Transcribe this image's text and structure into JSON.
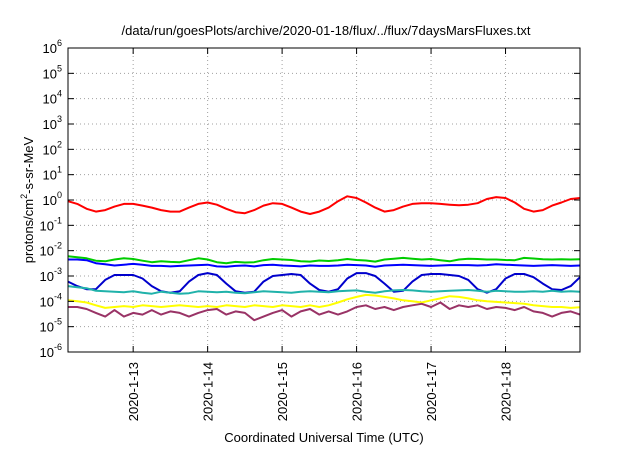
{
  "chart_data": {
    "type": "line",
    "title": "/data/run/goesPlots/archive/2020-01-18/flux/../flux/7daysMarsFluxes.txt",
    "xlabel": "Coordinated Universal Time (UTC)",
    "ylabel_parts": [
      "protons/cm",
      "2",
      "-s-sr-MeV"
    ],
    "y_scale": "log",
    "ylim": [
      1e-06,
      1000000.0
    ],
    "y_ticks": [
      {
        "base": "10",
        "exp": "-6",
        "value": 1e-06
      },
      {
        "base": "10",
        "exp": "-5",
        "value": 1e-05
      },
      {
        "base": "10",
        "exp": "-4",
        "value": 0.0001
      },
      {
        "base": "10",
        "exp": "-3",
        "value": 0.001
      },
      {
        "base": "10",
        "exp": "-2",
        "value": 0.01
      },
      {
        "base": "10",
        "exp": "-1",
        "value": 0.1
      },
      {
        "base": "10",
        "exp": "0",
        "value": 1
      },
      {
        "base": "10",
        "exp": "1",
        "value": 10
      },
      {
        "base": "10",
        "exp": "2",
        "value": 100
      },
      {
        "base": "10",
        "exp": "3",
        "value": 1000
      },
      {
        "base": "10",
        "exp": "4",
        "value": 10000
      },
      {
        "base": "10",
        "exp": "5",
        "value": 100000
      },
      {
        "base": "10",
        "exp": "6",
        "value": 1000000
      }
    ],
    "xlim": [
      "2020-01-12T03:00",
      "2020-01-19T00:00"
    ],
    "x_ticks": [
      {
        "label": "2020-1-13",
        "value": "2020-01-13T00:00"
      },
      {
        "label": "2020-1-14",
        "value": "2020-01-14T00:00"
      },
      {
        "label": "2020-1-15",
        "value": "2020-01-15T00:00"
      },
      {
        "label": "2020-1-16",
        "value": "2020-01-16T00:00"
      },
      {
        "label": "2020-1-17",
        "value": "2020-01-17T00:00"
      },
      {
        "label": "2020-1-18",
        "value": "2020-01-18T00:00"
      }
    ],
    "grid": true,
    "x": [
      "2020-01-12T03:00",
      "2020-01-12T06:00",
      "2020-01-12T09:00",
      "2020-01-12T12:00",
      "2020-01-12T15:00",
      "2020-01-12T18:00",
      "2020-01-12T21:00",
      "2020-01-13T00:00",
      "2020-01-13T03:00",
      "2020-01-13T06:00",
      "2020-01-13T09:00",
      "2020-01-13T12:00",
      "2020-01-13T15:00",
      "2020-01-13T18:00",
      "2020-01-13T21:00",
      "2020-01-14T00:00",
      "2020-01-14T03:00",
      "2020-01-14T06:00",
      "2020-01-14T09:00",
      "2020-01-14T12:00",
      "2020-01-14T15:00",
      "2020-01-14T18:00",
      "2020-01-14T21:00",
      "2020-01-15T00:00",
      "2020-01-15T03:00",
      "2020-01-15T06:00",
      "2020-01-15T09:00",
      "2020-01-15T12:00",
      "2020-01-15T15:00",
      "2020-01-15T18:00",
      "2020-01-15T21:00",
      "2020-01-16T00:00",
      "2020-01-16T03:00",
      "2020-01-16T06:00",
      "2020-01-16T09:00",
      "2020-01-16T12:00",
      "2020-01-16T15:00",
      "2020-01-16T18:00",
      "2020-01-16T21:00",
      "2020-01-17T00:00",
      "2020-01-17T03:00",
      "2020-01-17T06:00",
      "2020-01-17T09:00",
      "2020-01-17T12:00",
      "2020-01-17T15:00",
      "2020-01-17T18:00",
      "2020-01-17T21:00",
      "2020-01-18T00:00",
      "2020-01-18T03:00",
      "2020-01-18T06:00",
      "2020-01-18T09:00",
      "2020-01-18T12:00",
      "2020-01-18T15:00",
      "2020-01-18T18:00",
      "2020-01-18T21:00",
      "2020-01-19T00:00"
    ],
    "series": [
      {
        "color": "#ff0000",
        "values": [
          0.9,
          0.7,
          0.45,
          0.35,
          0.4,
          0.55,
          0.7,
          0.7,
          0.6,
          0.5,
          0.4,
          0.35,
          0.35,
          0.5,
          0.7,
          0.8,
          0.65,
          0.45,
          0.33,
          0.3,
          0.4,
          0.6,
          0.75,
          0.7,
          0.5,
          0.35,
          0.28,
          0.35,
          0.5,
          0.9,
          1.4,
          1.2,
          0.8,
          0.5,
          0.35,
          0.4,
          0.55,
          0.7,
          0.75,
          0.75,
          0.7,
          0.65,
          0.62,
          0.65,
          0.75,
          1.1,
          1.3,
          1.2,
          0.8,
          0.45,
          0.35,
          0.4,
          0.6,
          0.8,
          1.1,
          1.2
        ]
      },
      {
        "color": "#00cc00",
        "values": [
          0.006,
          0.0055,
          0.005,
          0.004,
          0.0038,
          0.0045,
          0.005,
          0.0047,
          0.004,
          0.0035,
          0.0038,
          0.0036,
          0.0035,
          0.0042,
          0.005,
          0.0045,
          0.0035,
          0.0032,
          0.0036,
          0.0034,
          0.0035,
          0.0042,
          0.0047,
          0.0045,
          0.0043,
          0.0038,
          0.0037,
          0.0041,
          0.0039,
          0.0042,
          0.0047,
          0.0043,
          0.0041,
          0.0037,
          0.0045,
          0.0048,
          0.0052,
          0.0048,
          0.0045,
          0.0047,
          0.0042,
          0.0038,
          0.0045,
          0.0048,
          0.0047,
          0.0045,
          0.0045,
          0.0043,
          0.0042,
          0.0052,
          0.0049,
          0.0046,
          0.0045,
          0.0046,
          0.0045,
          0.0046
        ]
      },
      {
        "color": "#0000ff",
        "values": [
          0.0045,
          0.0045,
          0.0042,
          0.0032,
          0.0029,
          0.0026,
          0.0028,
          0.003,
          0.0028,
          0.0025,
          0.0025,
          0.0024,
          0.0025,
          0.0026,
          0.0027,
          0.0028,
          0.0024,
          0.0023,
          0.0025,
          0.0026,
          0.0024,
          0.0027,
          0.0028,
          0.0026,
          0.0025,
          0.0024,
          0.0026,
          0.0025,
          0.0025,
          0.0026,
          0.0028,
          0.0027,
          0.0026,
          0.0023,
          0.0026,
          0.0027,
          0.0028,
          0.0027,
          0.0026,
          0.0025,
          0.0026,
          0.0027,
          0.0027,
          0.0027,
          0.0026,
          0.0027,
          0.0029,
          0.0028,
          0.0027,
          0.0026,
          0.0025,
          0.0026,
          0.0027,
          0.0026,
          0.0025,
          0.0026
        ]
      },
      {
        "color": "#0000cc",
        "values": [
          0.0006,
          0.0004,
          0.0003,
          0.0003,
          0.0007,
          0.0011,
          0.0011,
          0.0011,
          0.0008,
          0.0004,
          0.00025,
          0.00022,
          0.00025,
          0.0006,
          0.0011,
          0.0013,
          0.0011,
          0.0005,
          0.00025,
          0.00022,
          0.00024,
          0.0006,
          0.001,
          0.0011,
          0.0012,
          0.0011,
          0.0005,
          0.00028,
          0.00024,
          0.0003,
          0.0008,
          0.0013,
          0.0013,
          0.001,
          0.0005,
          0.00024,
          0.00026,
          0.0006,
          0.0011,
          0.0012,
          0.0012,
          0.0011,
          0.001,
          0.0007,
          0.0003,
          0.00022,
          0.0003,
          0.0008,
          0.0012,
          0.0012,
          0.0009,
          0.0005,
          0.0003,
          0.00028,
          0.0004,
          0.0009
        ]
      },
      {
        "color": "#20b2aa",
        "values": [
          0.0004,
          0.00036,
          0.00033,
          0.00026,
          0.00025,
          0.00024,
          0.00023,
          0.00025,
          0.00022,
          0.0002,
          0.00024,
          0.00022,
          0.0002,
          0.00021,
          0.00025,
          0.00024,
          0.00023,
          0.00024,
          0.00022,
          0.00021,
          0.00023,
          0.00025,
          0.00024,
          0.00023,
          0.00022,
          0.00024,
          0.00025,
          0.00024,
          0.00023,
          0.00025,
          0.00026,
          0.00027,
          0.00024,
          0.00022,
          0.00025,
          0.00027,
          0.00028,
          0.00027,
          0.00025,
          0.00024,
          0.00025,
          0.00026,
          0.00027,
          0.00028,
          0.00026,
          0.00024,
          0.00026,
          0.00025,
          0.00024,
          0.00024,
          0.00025,
          0.00024,
          0.00026,
          0.00024,
          0.00025,
          0.00024
        ]
      },
      {
        "color": "#ffff00",
        "values": [
          0.00011,
          0.0001,
          9e-05,
          7e-05,
          5.5e-05,
          6e-05,
          6.5e-05,
          6e-05,
          7e-05,
          6.5e-05,
          6e-05,
          6.5e-05,
          7e-05,
          6.5e-05,
          6e-05,
          6.5e-05,
          6e-05,
          7e-05,
          6.5e-05,
          6e-05,
          7e-05,
          6.5e-05,
          6e-05,
          7e-05,
          6.5e-05,
          6e-05,
          7e-05,
          6e-05,
          7e-05,
          9e-05,
          0.00012,
          0.00015,
          0.00018,
          0.00017,
          0.00015,
          0.00013,
          0.00011,
          0.0001,
          9e-05,
          0.00011,
          0.00013,
          0.00016,
          0.00015,
          0.00013,
          0.00011,
          0.0001,
          9.5e-05,
          9e-05,
          8.5e-05,
          8e-05,
          7e-05,
          6.5e-05,
          6e-05,
          6e-05,
          5.5e-05,
          5.8e-05
        ]
      },
      {
        "color": "#993366",
        "values": [
          6e-05,
          6e-05,
          5e-05,
          3.5e-05,
          2.5e-05,
          4.5e-05,
          2.5e-05,
          3.5e-05,
          3e-05,
          4.5e-05,
          3e-05,
          4e-05,
          3.5e-05,
          2.5e-05,
          3.5e-05,
          4.5e-05,
          5e-05,
          3e-05,
          4e-05,
          3.5e-05,
          1.8e-05,
          2.5e-05,
          3.5e-05,
          4.5e-05,
          2.5e-05,
          4e-05,
          5e-05,
          3e-05,
          4e-05,
          3e-05,
          4e-05,
          6e-05,
          7e-05,
          5e-05,
          6e-05,
          4.5e-05,
          6e-05,
          7e-05,
          8e-05,
          6e-05,
          9e-05,
          5e-05,
          7e-05,
          6e-05,
          7e-05,
          5e-05,
          6e-05,
          5.5e-05,
          4.5e-05,
          6e-05,
          4e-05,
          3.5e-05,
          2.5e-05,
          3.5e-05,
          4e-05,
          3e-05
        ]
      }
    ]
  }
}
